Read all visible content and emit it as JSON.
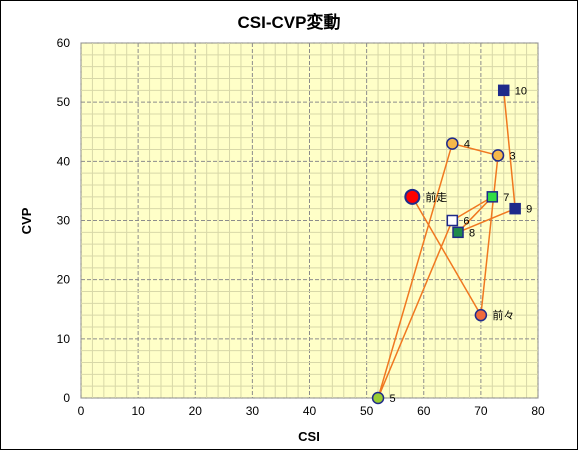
{
  "chart_data": {
    "type": "scatter",
    "title": "CSI-CVP変動",
    "xlabel": "CSI",
    "ylabel": "CVP",
    "xlim": [
      0,
      80
    ],
    "ylim": [
      0,
      60
    ],
    "xticks": [
      0,
      10,
      20,
      30,
      40,
      50,
      60,
      70,
      80
    ],
    "yticks": [
      0,
      10,
      20,
      30,
      40,
      50,
      60
    ],
    "grid": true,
    "plot_background": "#FFFFC8",
    "line_color": "#F07820",
    "points": [
      {
        "label": "前走",
        "x": 58,
        "y": 34,
        "shape": "circle-large",
        "fill": "#FF0000",
        "stroke": "#1F2A8A"
      },
      {
        "label": "前々",
        "x": 70,
        "y": 14,
        "shape": "circle",
        "fill": "#F06A3A",
        "stroke": "#1F2A8A"
      },
      {
        "label": "3",
        "x": 73,
        "y": 41,
        "shape": "circle",
        "fill": "#F5B84A",
        "stroke": "#1F2A8A"
      },
      {
        "label": "4",
        "x": 65,
        "y": 43,
        "shape": "circle",
        "fill": "#F5B84A",
        "stroke": "#1F2A8A"
      },
      {
        "label": "5",
        "x": 52,
        "y": 0,
        "shape": "circle",
        "fill": "#9ACD32",
        "stroke": "#1F2A8A"
      },
      {
        "label": "6",
        "x": 65,
        "y": 30,
        "shape": "square",
        "fill": "#FFFFFF",
        "stroke": "#1F2A8A"
      },
      {
        "label": "7",
        "x": 72,
        "y": 34,
        "shape": "square",
        "fill": "#33DD44",
        "stroke": "#1F2A8A"
      },
      {
        "label": "8",
        "x": 66,
        "y": 28,
        "shape": "square",
        "fill": "#1F8A4A",
        "stroke": "#1F2A8A"
      },
      {
        "label": "9",
        "x": 76,
        "y": 32,
        "shape": "square",
        "fill": "#1F2A8A",
        "stroke": "#1F2A8A"
      },
      {
        "label": "10",
        "x": 74,
        "y": 52,
        "shape": "square",
        "fill": "#1F2A8A",
        "stroke": "#1F2A8A"
      }
    ]
  }
}
